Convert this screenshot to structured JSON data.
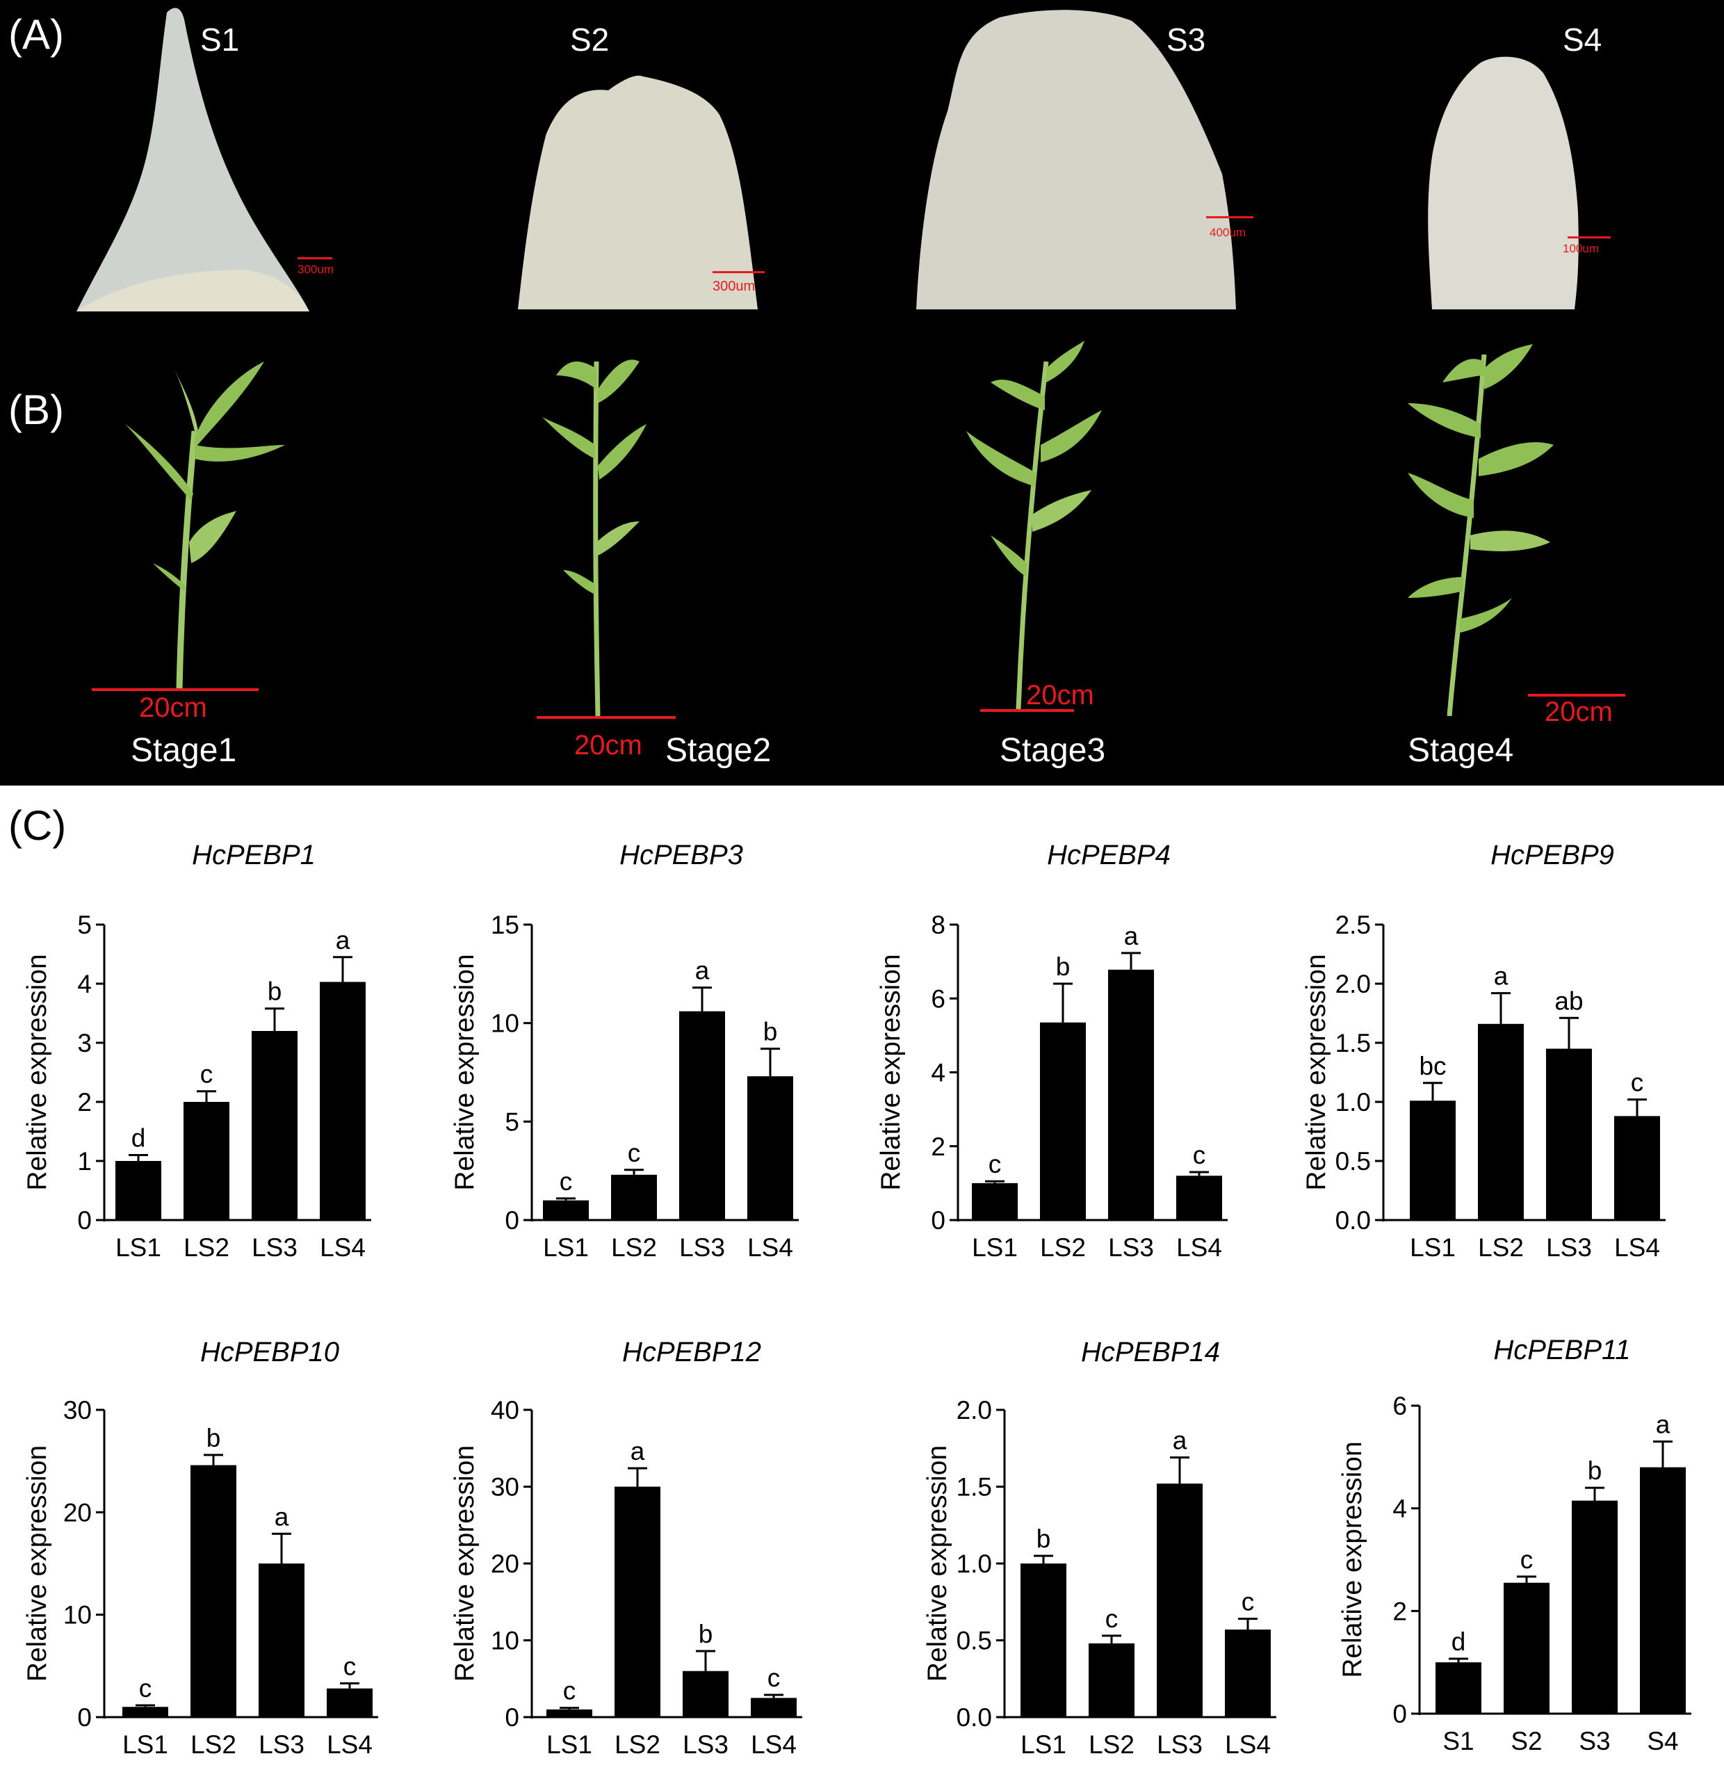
{
  "panel_labels": {
    "a": "(A)",
    "b": "(B)",
    "c": "(C)"
  },
  "tissue_images": [
    {
      "label": "S1",
      "scale": "300um"
    },
    {
      "label": "S2",
      "scale": "300um"
    },
    {
      "label": "S3",
      "scale": "400um"
    },
    {
      "label": "S4",
      "scale": "100um"
    }
  ],
  "plant_images": [
    {
      "label": "Stage1",
      "scale": "20cm"
    },
    {
      "label": "Stage2",
      "scale": "20cm"
    },
    {
      "label": "Stage3",
      "scale": "20cm"
    },
    {
      "label": "Stage4",
      "scale": "20cm"
    }
  ],
  "colors": {
    "bar": "#000000",
    "scalebar": "#e8191f",
    "photo_background": "#000000",
    "leaf": "#8fbf55",
    "tissue": "#d9d9cf"
  },
  "chart_data": [
    {
      "type": "bar",
      "title": "HcPEBP1",
      "ylabel": "Relative expression",
      "xlabel": "",
      "categories": [
        "LS1",
        "LS2",
        "LS3",
        "LS4"
      ],
      "values": [
        1.0,
        2.0,
        3.2,
        4.03
      ],
      "errors": [
        0.1,
        0.18,
        0.38,
        0.42
      ],
      "letters": [
        "d",
        "c",
        "b",
        "a"
      ],
      "ylim": [
        0,
        5
      ],
      "yticks": [
        "0",
        "1",
        "2",
        "3",
        "4",
        "5"
      ]
    },
    {
      "type": "bar",
      "title": "HcPEBP3",
      "ylabel": "Relative expression",
      "xlabel": "",
      "categories": [
        "LS1",
        "LS2",
        "LS3",
        "LS4"
      ],
      "values": [
        1.0,
        2.3,
        10.6,
        7.3
      ],
      "errors": [
        0.1,
        0.25,
        1.2,
        1.4
      ],
      "letters": [
        "c",
        "c",
        "a",
        "b"
      ],
      "ylim": [
        0,
        15
      ],
      "yticks": [
        "0",
        "5",
        "10",
        "15"
      ]
    },
    {
      "type": "bar",
      "title": "HcPEBP4",
      "ylabel": "Relative expression",
      "xlabel": "",
      "categories": [
        "LS1",
        "LS2",
        "LS3",
        "LS4"
      ],
      "values": [
        1.0,
        5.35,
        6.78,
        1.2
      ],
      "errors": [
        0.05,
        1.05,
        0.45,
        0.1
      ],
      "letters": [
        "c",
        "b",
        "a",
        "c"
      ],
      "ylim": [
        0,
        8
      ],
      "yticks": [
        "0",
        "2",
        "4",
        "6",
        "8"
      ]
    },
    {
      "type": "bar",
      "title": "HcPEBP9",
      "ylabel": "Relative expression",
      "xlabel": "",
      "categories": [
        "LS1",
        "LS2",
        "LS3",
        "LS4"
      ],
      "values": [
        1.01,
        1.66,
        1.45,
        0.88
      ],
      "errors": [
        0.15,
        0.26,
        0.26,
        0.14
      ],
      "letters": [
        "bc",
        "a",
        "ab",
        "c"
      ],
      "ylim": [
        0,
        2.5
      ],
      "yticks": [
        "0.0",
        "0.5",
        "1.0",
        "1.5",
        "2.0",
        "2.5"
      ]
    },
    {
      "type": "bar",
      "title": "HcPEBP10",
      "ylabel": "Relative expression",
      "xlabel": "",
      "categories": [
        "LS1",
        "LS2",
        "LS3",
        "LS4"
      ],
      "values": [
        1.0,
        24.6,
        15.0,
        2.8
      ],
      "errors": [
        0.15,
        1.0,
        2.9,
        0.5
      ],
      "letters": [
        "c",
        "b",
        "a",
        "c"
      ],
      "ylim": [
        0,
        30
      ],
      "yticks": [
        "0",
        "10",
        "20",
        "30"
      ]
    },
    {
      "type": "bar",
      "title": "HcPEBP12",
      "ylabel": "Relative expression",
      "xlabel": "",
      "categories": [
        "LS1",
        "LS2",
        "LS3",
        "LS4"
      ],
      "values": [
        1.0,
        30.0,
        6.0,
        2.5
      ],
      "errors": [
        0.2,
        2.4,
        2.6,
        0.4
      ],
      "letters": [
        "c",
        "a",
        "b",
        "c"
      ],
      "ylim": [
        0,
        40
      ],
      "yticks": [
        "0",
        "10",
        "20",
        "30",
        "40"
      ]
    },
    {
      "type": "bar",
      "title": "HcPEBP14",
      "ylabel": "Relative expression",
      "xlabel": "",
      "categories": [
        "LS1",
        "LS2",
        "LS3",
        "LS4"
      ],
      "values": [
        1.0,
        0.48,
        1.52,
        0.57
      ],
      "errors": [
        0.05,
        0.05,
        0.17,
        0.07
      ],
      "letters": [
        "b",
        "c",
        "a",
        "c"
      ],
      "ylim": [
        0,
        2.0
      ],
      "yticks": [
        "0.0",
        "0.5",
        "1.0",
        "1.5",
        "2.0"
      ]
    },
    {
      "type": "bar",
      "title": "HcPEBP11",
      "ylabel": "Relative expression",
      "xlabel": "",
      "categories": [
        "S1",
        "S2",
        "S3",
        "S4"
      ],
      "values": [
        1.0,
        2.55,
        4.15,
        4.8
      ],
      "errors": [
        0.07,
        0.12,
        0.25,
        0.5
      ],
      "letters": [
        "d",
        "c",
        "b",
        "a"
      ],
      "ylim": [
        0,
        6
      ],
      "yticks": [
        "0",
        "2",
        "4",
        "6"
      ]
    }
  ]
}
